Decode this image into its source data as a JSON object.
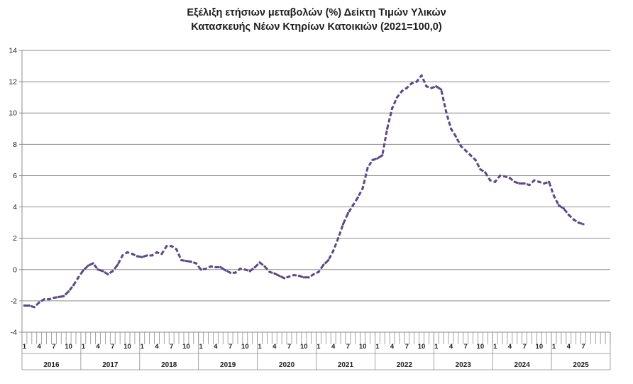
{
  "chart_data": {
    "type": "line",
    "title_line1": "Εξέλιξη ετήσιων μεταβολών (%) Δείκτη Τιμών Υλικών",
    "title_line2": "Κατασκευής Νέων Κτηρίων Κατοικιών (2021=100,0)",
    "ylim": [
      -4,
      14
    ],
    "yticks": [
      -4,
      -2,
      0,
      2,
      4,
      6,
      8,
      10,
      12,
      14
    ],
    "grid": true,
    "series_color": "#5b4a85",
    "line_style": "dashed",
    "start_year": 2016,
    "years": [
      "2016",
      "2017",
      "2018",
      "2019",
      "2020",
      "2021",
      "2022",
      "2023",
      "2024",
      "2025"
    ],
    "month_tick_labels": [
      "1",
      "4",
      "7",
      "10"
    ],
    "series": [
      {
        "values": [
          -2.3,
          -2.3,
          -2.4,
          -2.1,
          -1.9,
          -1.9,
          -1.8,
          -1.75,
          -1.7,
          -1.4,
          -1.0,
          -0.5,
          -0.05,
          0.25,
          0.4,
          0.0,
          -0.1,
          -0.3,
          -0.1,
          0.3,
          0.9,
          1.1,
          1.0,
          0.85,
          0.8,
          0.9,
          0.9,
          1.1,
          1.0,
          1.5,
          1.5,
          1.3,
          0.6,
          0.55,
          0.5,
          0.4,
          0.0,
          0.05,
          0.2,
          0.15,
          0.15,
          -0.05,
          -0.2,
          -0.2,
          0.05,
          0.0,
          -0.1,
          0.15,
          0.45,
          0.2,
          -0.15,
          -0.25,
          -0.4,
          -0.55,
          -0.45,
          -0.35,
          -0.4,
          -0.5,
          -0.5,
          -0.3,
          -0.15,
          0.3,
          0.6,
          1.2,
          2.0,
          2.9,
          3.6,
          4.1,
          4.6,
          5.2,
          6.5,
          7.0,
          7.1,
          7.3,
          9.0,
          10.3,
          11.0,
          11.4,
          11.6,
          11.9,
          12.0,
          12.4,
          11.7,
          11.6,
          11.7,
          11.5,
          10.1,
          9.0,
          8.5,
          7.9,
          7.6,
          7.3,
          7.0,
          6.4,
          6.2,
          5.7,
          5.6,
          6.0,
          5.95,
          5.85,
          5.6,
          5.5,
          5.5,
          5.4,
          5.7,
          5.6,
          5.5,
          5.6,
          4.7,
          4.1,
          3.9,
          3.5,
          3.2,
          3.0,
          2.9
        ]
      }
    ]
  }
}
